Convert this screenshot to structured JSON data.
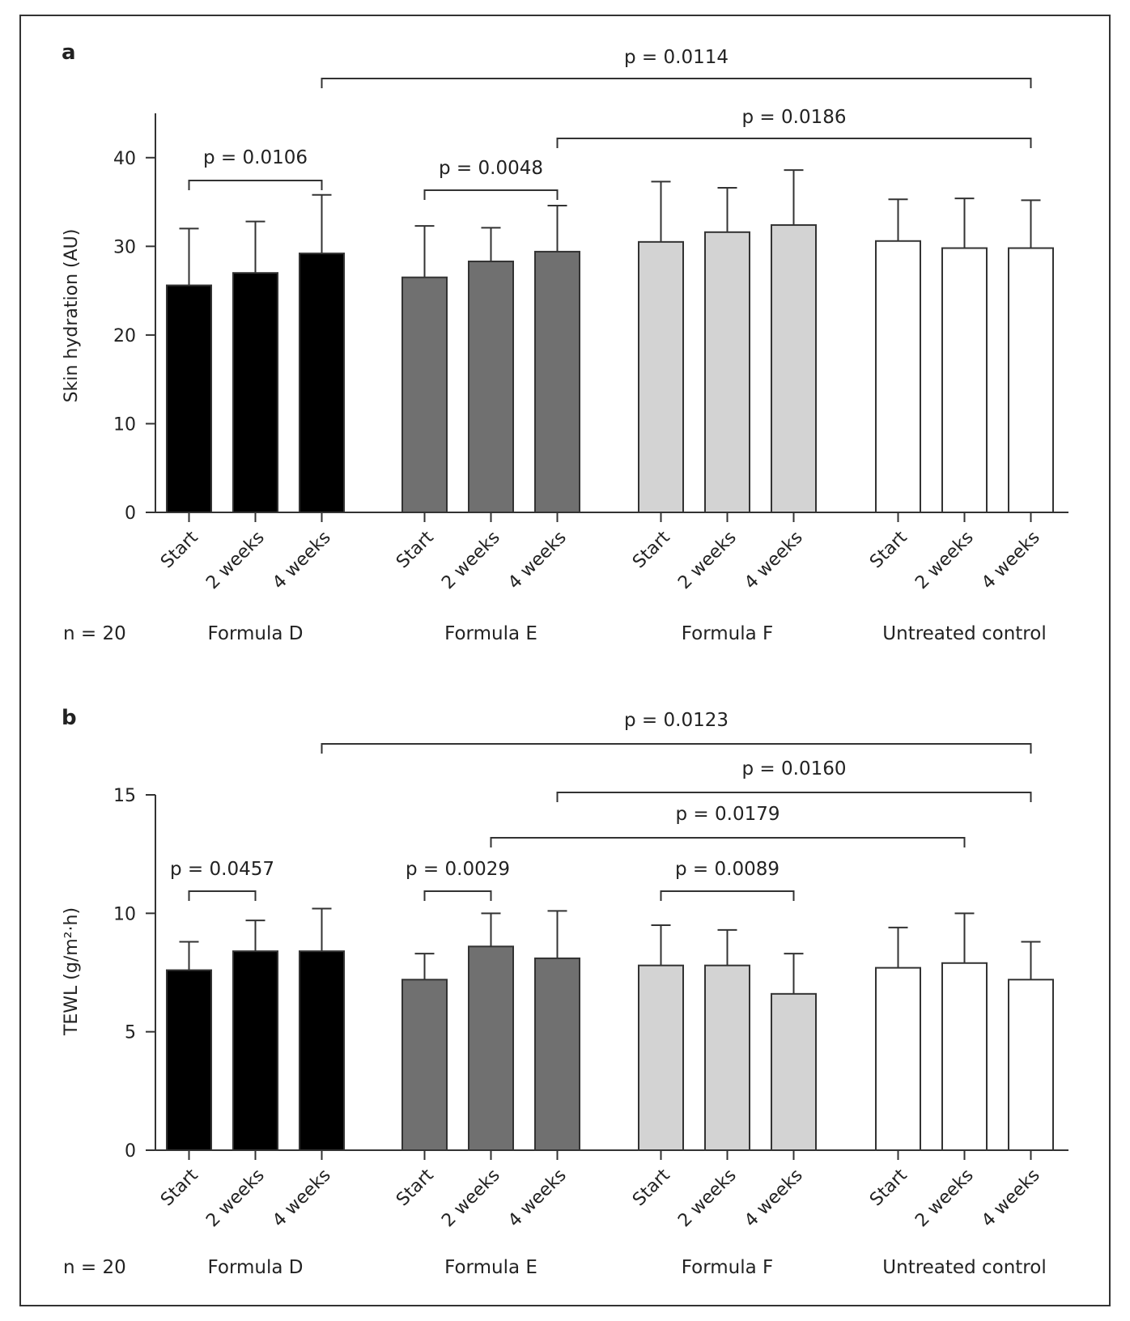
{
  "chart_data": [
    {
      "panel_label": "a",
      "type": "bar",
      "ylabel": "Skin hydration (AU)",
      "ylim": [
        0,
        45
      ],
      "yticks": [
        0,
        10,
        20,
        30,
        40
      ],
      "n_label": "n = 20",
      "timepoints": [
        "Start",
        "2 weeks",
        "4 weeks"
      ],
      "groups": [
        {
          "name": "Formula D",
          "color": "#000000",
          "values": [
            25.6,
            27.0,
            29.2
          ],
          "errors": [
            6.4,
            5.8,
            6.6
          ]
        },
        {
          "name": "Formula E",
          "color": "#707070",
          "values": [
            26.5,
            28.3,
            29.4
          ],
          "errors": [
            5.8,
            3.8,
            5.2
          ]
        },
        {
          "name": "Formula F",
          "color": "#d3d3d3",
          "values": [
            30.5,
            31.6,
            32.4
          ],
          "errors": [
            6.8,
            5.0,
            6.2
          ]
        },
        {
          "name": "Untreated control",
          "color": "#ffffff",
          "values": [
            30.6,
            29.8,
            29.8
          ],
          "errors": [
            4.7,
            5.6,
            5.4
          ]
        }
      ],
      "comparisons": [
        {
          "label": "p = 0.0114",
          "from": [
            0,
            2
          ],
          "to": [
            3,
            2
          ]
        },
        {
          "label": "p = 0.0186",
          "from": [
            1,
            2
          ],
          "to": [
            3,
            2
          ]
        },
        {
          "label": "p = 0.0106",
          "from": [
            0,
            0
          ],
          "to": [
            0,
            2
          ]
        },
        {
          "label": "p = 0.0048",
          "from": [
            1,
            0
          ],
          "to": [
            1,
            2
          ]
        }
      ]
    },
    {
      "panel_label": "b",
      "type": "bar",
      "ylabel": "TEWL (g/m²·h)",
      "ylim": [
        0,
        15
      ],
      "yticks": [
        0,
        5,
        10,
        15
      ],
      "n_label": "n = 20",
      "timepoints": [
        "Start",
        "2 weeks",
        "4 weeks"
      ],
      "groups": [
        {
          "name": "Formula D",
          "color": "#000000",
          "values": [
            7.6,
            8.4,
            8.4
          ],
          "errors": [
            1.2,
            1.3,
            1.8
          ]
        },
        {
          "name": "Formula E",
          "color": "#707070",
          "values": [
            7.2,
            8.6,
            8.1
          ],
          "errors": [
            1.1,
            1.4,
            2.0
          ]
        },
        {
          "name": "Formula F",
          "color": "#d3d3d3",
          "values": [
            7.8,
            7.8,
            6.6
          ],
          "errors": [
            1.7,
            1.5,
            1.7
          ]
        },
        {
          "name": "Untreated control",
          "color": "#ffffff",
          "values": [
            7.7,
            7.9,
            7.2
          ],
          "errors": [
            1.7,
            2.1,
            1.6
          ]
        }
      ],
      "comparisons": [
        {
          "label": "p = 0.0123",
          "from": [
            0,
            2
          ],
          "to": [
            3,
            2
          ]
        },
        {
          "label": "p = 0.0160",
          "from": [
            1,
            2
          ],
          "to": [
            3,
            2
          ]
        },
        {
          "label": "p = 0.0179",
          "from": [
            1,
            1
          ],
          "to": [
            3,
            1
          ]
        },
        {
          "label": "p = 0.0457",
          "from": [
            0,
            0
          ],
          "to": [
            0,
            1
          ]
        },
        {
          "label": "p = 0.0029",
          "from": [
            1,
            0
          ],
          "to": [
            1,
            1
          ]
        },
        {
          "label": "p = 0.0089",
          "from": [
            2,
            0
          ],
          "to": [
            2,
            2
          ]
        }
      ]
    }
  ]
}
